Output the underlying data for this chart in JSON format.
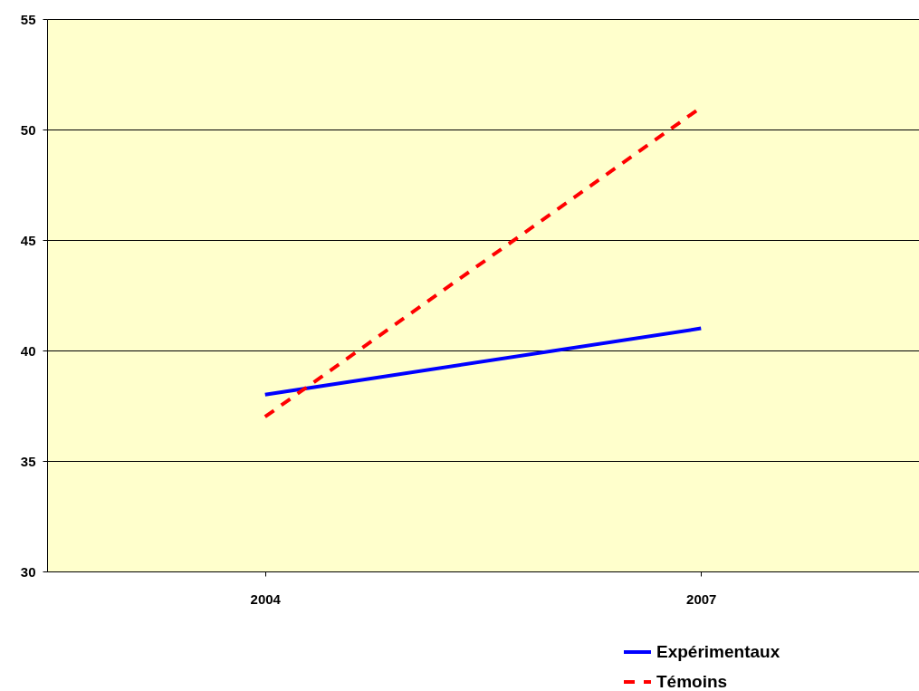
{
  "chart_data": {
    "type": "line",
    "categories": [
      "2004",
      "2007"
    ],
    "series": [
      {
        "name": "Expérimentaux",
        "color": "#0000ff",
        "line_style": "solid",
        "values": [
          38,
          41
        ]
      },
      {
        "name": "Témoins",
        "color": "#ff0000",
        "line_style": "dashed",
        "values": [
          37,
          51
        ]
      }
    ],
    "ylim": [
      30,
      55
    ],
    "yticks": [
      30,
      35,
      40,
      45,
      50,
      55
    ],
    "grid": "y",
    "legend": "bottom right"
  }
}
